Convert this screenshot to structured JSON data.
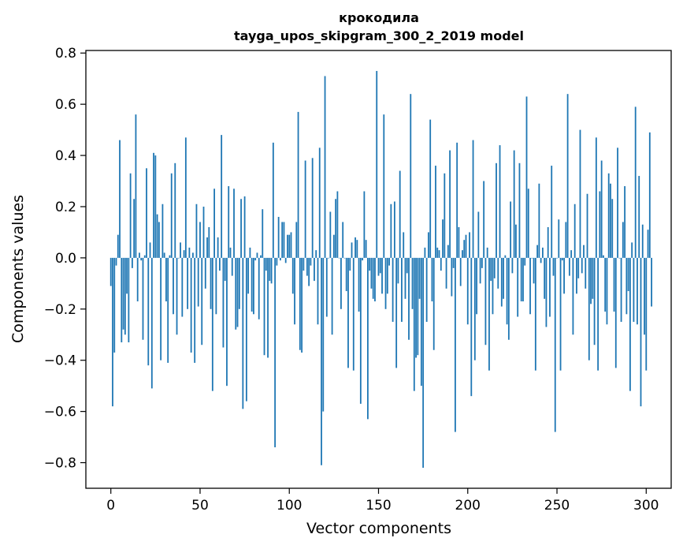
{
  "chart_data": {
    "type": "bar",
    "title": "крокодила",
    "subtitle": "tayga_upos_skipgram_300_2_2019 model",
    "xlabel": "Vector components",
    "ylabel": "Components values",
    "xlim": [
      -14,
      314
    ],
    "ylim": [
      -0.9,
      0.81
    ],
    "xticks": [
      0,
      50,
      100,
      150,
      200,
      250,
      300
    ],
    "xtick_labels": [
      "0",
      "50",
      "100",
      "150",
      "200",
      "250",
      "300"
    ],
    "yticks": [
      -0.8,
      -0.6,
      -0.4,
      -0.2,
      0.0,
      0.2,
      0.4,
      0.6,
      0.8
    ],
    "ytick_labels": [
      "−0.8",
      "−0.6",
      "−0.4",
      "−0.2",
      "0.0",
      "0.2",
      "0.4",
      "0.6",
      "0.8"
    ],
    "bar_color": "#1f77b4",
    "values": [
      -0.11,
      -0.58,
      -0.37,
      -0.03,
      0.09,
      0.46,
      -0.33,
      -0.28,
      -0.3,
      -0.14,
      -0.33,
      0.33,
      -0.04,
      0.23,
      0.56,
      -0.17,
      0.02,
      -0.01,
      -0.32,
      0.01,
      0.35,
      -0.42,
      0.06,
      -0.51,
      0.41,
      0.4,
      0.17,
      0.14,
      -0.4,
      0.21,
      0.02,
      -0.17,
      -0.41,
      0.01,
      0.33,
      -0.22,
      0.37,
      -0.3,
      0.0,
      0.06,
      -0.23,
      0.03,
      0.47,
      -0.2,
      0.04,
      -0.37,
      0.02,
      -0.41,
      0.21,
      -0.19,
      0.14,
      -0.34,
      0.2,
      -0.12,
      0.08,
      0.12,
      -0.2,
      -0.52,
      0.27,
      -0.22,
      0.08,
      -0.05,
      0.48,
      -0.35,
      -0.09,
      -0.5,
      0.28,
      0.04,
      -0.07,
      0.27,
      -0.28,
      -0.27,
      -0.2,
      0.23,
      -0.59,
      0.24,
      -0.56,
      -0.14,
      0.04,
      -0.21,
      -0.22,
      -0.01,
      0.02,
      -0.24,
      0.01,
      0.19,
      -0.38,
      -0.05,
      -0.39,
      -0.09,
      -0.1,
      0.45,
      -0.74,
      -0.03,
      0.16,
      -0.01,
      0.14,
      0.14,
      -0.02,
      0.09,
      0.09,
      0.1,
      -0.14,
      -0.26,
      0.14,
      0.57,
      -0.36,
      -0.37,
      -0.05,
      0.38,
      -0.07,
      -0.11,
      -0.03,
      0.39,
      -0.09,
      0.03,
      -0.26,
      0.43,
      -0.81,
      -0.6,
      0.71,
      -0.23,
      0.0,
      0.18,
      -0.3,
      0.09,
      0.23,
      0.26,
      0.0,
      -0.2,
      0.14,
      0.0,
      -0.13,
      -0.43,
      -0.05,
      0.06,
      -0.44,
      0.08,
      0.07,
      -0.21,
      -0.57,
      -0.01,
      0.26,
      0.07,
      -0.63,
      -0.05,
      -0.12,
      -0.16,
      -0.17,
      0.73,
      -0.07,
      -0.06,
      -0.14,
      0.56,
      -0.2,
      -0.14,
      -0.03,
      0.21,
      -0.25,
      0.22,
      -0.43,
      -0.1,
      0.34,
      -0.25,
      0.1,
      -0.16,
      -0.06,
      -0.32,
      0.64,
      -0.2,
      -0.52,
      -0.39,
      -0.38,
      -0.16,
      -0.5,
      -0.82,
      0.04,
      -0.25,
      0.1,
      0.54,
      -0.17,
      -0.36,
      0.36,
      0.04,
      0.03,
      -0.05,
      0.15,
      0.33,
      -0.12,
      0.05,
      0.42,
      -0.15,
      -0.04,
      -0.68,
      0.45,
      0.12,
      -0.11,
      0.03,
      0.07,
      0.09,
      -0.26,
      0.1,
      -0.54,
      0.46,
      -0.4,
      -0.22,
      0.18,
      -0.1,
      -0.04,
      0.3,
      -0.34,
      0.04,
      -0.44,
      -0.09,
      -0.22,
      -0.08,
      0.37,
      -0.12,
      0.44,
      -0.19,
      -0.16,
      0.01,
      -0.26,
      -0.32,
      0.22,
      -0.06,
      0.42,
      0.13,
      -0.23,
      0.37,
      -0.17,
      -0.17,
      -0.03,
      0.63,
      0.27,
      -0.22,
      0.0,
      -0.1,
      -0.44,
      0.05,
      0.29,
      -0.02,
      0.04,
      -0.16,
      -0.27,
      0.12,
      -0.23,
      0.36,
      -0.07,
      -0.68,
      0.0,
      0.15,
      -0.44,
      -0.01,
      -0.14,
      0.14,
      0.64,
      -0.07,
      0.03,
      -0.3,
      0.21,
      -0.14,
      -0.08,
      0.5,
      -0.06,
      0.05,
      -0.12,
      0.25,
      -0.4,
      -0.18,
      -0.16,
      -0.34,
      0.47,
      -0.44,
      0.26,
      0.38,
      0.01,
      -0.21,
      -0.26,
      0.33,
      0.29,
      0.23,
      -0.21,
      -0.43,
      0.43,
      0.0,
      -0.25,
      0.14,
      0.28,
      -0.22,
      -0.13,
      -0.52,
      0.06,
      -0.25,
      0.59,
      -0.26,
      0.32,
      -0.58,
      0.13,
      -0.3,
      -0.44,
      0.11,
      0.49,
      -0.19
    ]
  }
}
